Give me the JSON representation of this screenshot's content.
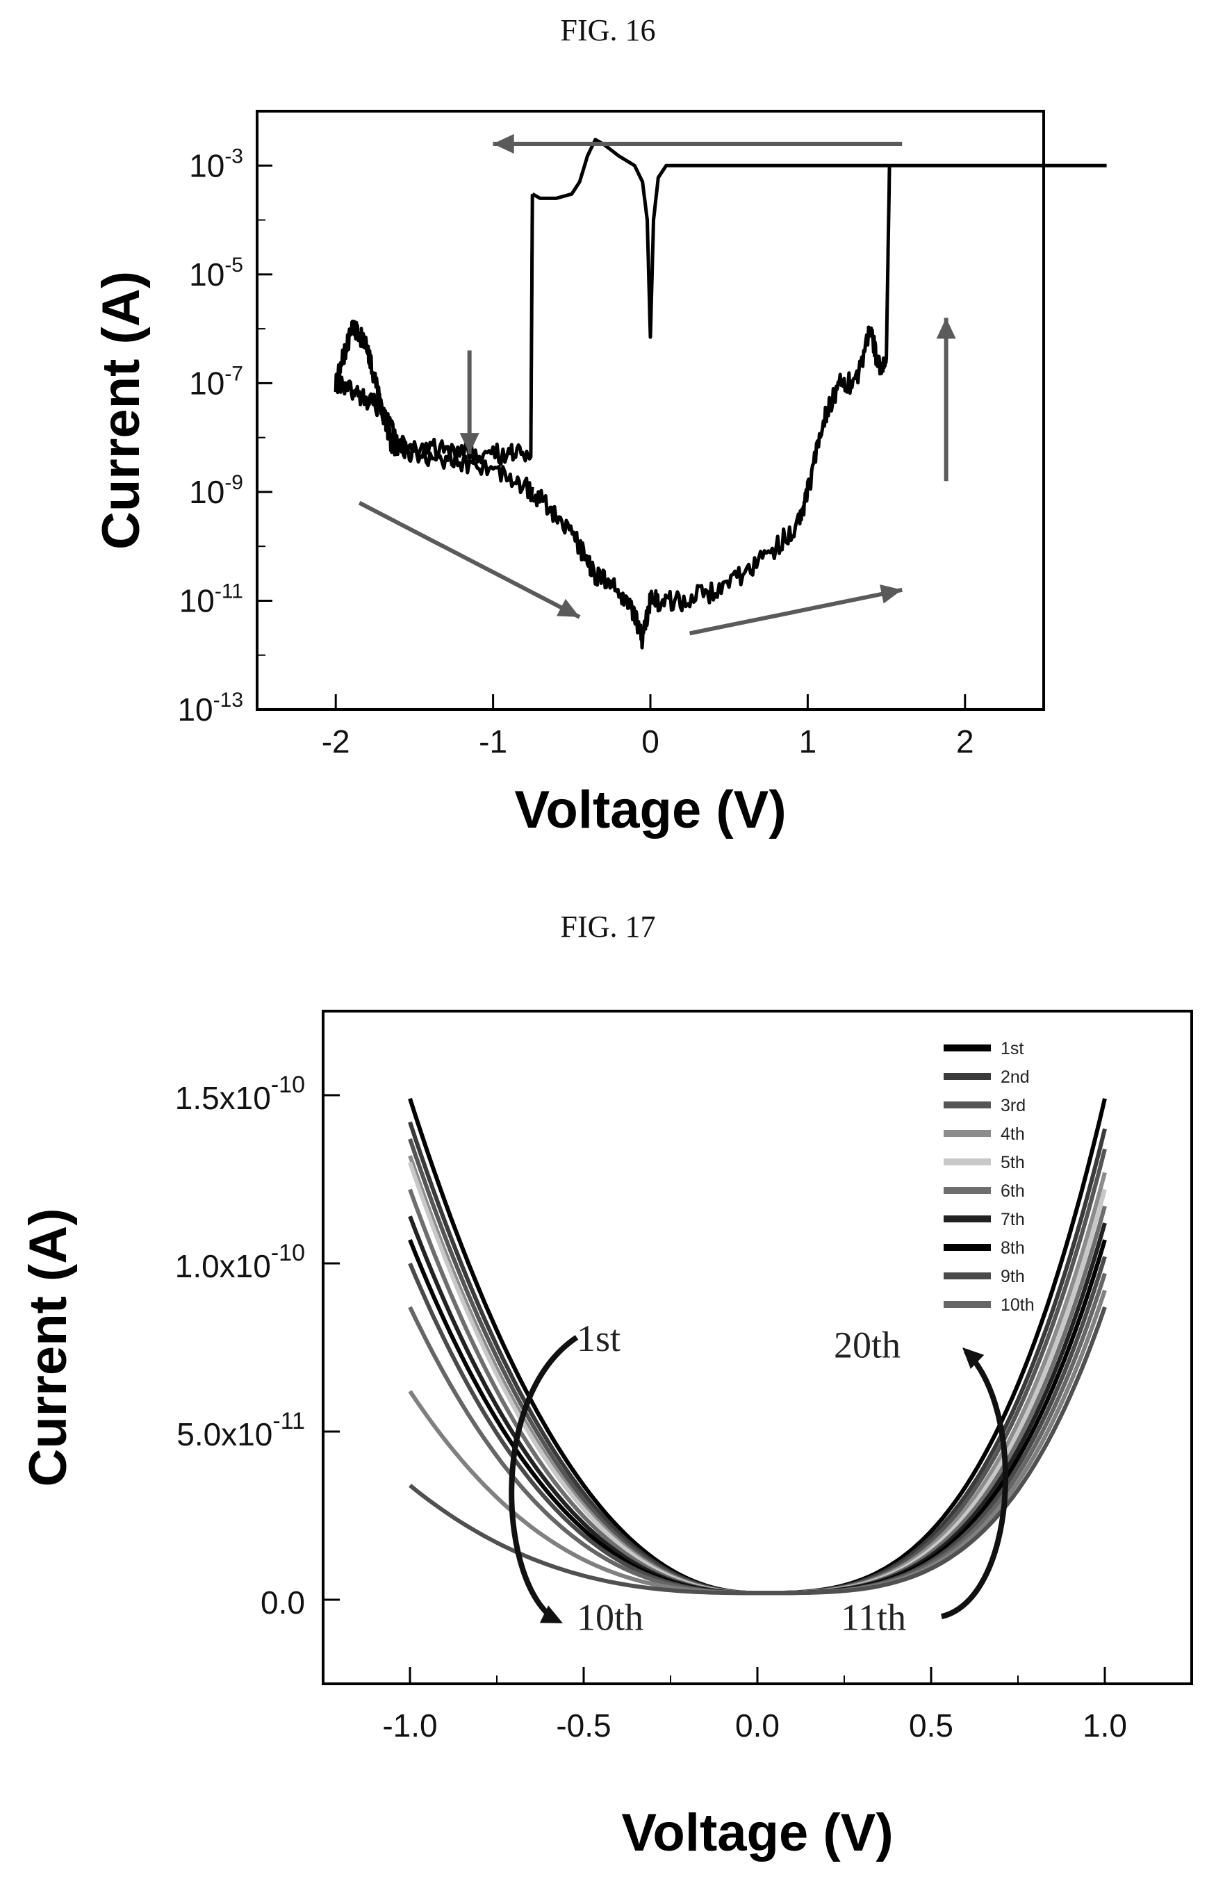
{
  "figures": {
    "fig16_title": "FIG. 16",
    "fig17_title": "FIG. 17"
  },
  "chart_data": [
    {
      "id": "fig16",
      "type": "line",
      "title": "FIG. 16",
      "xlabel": "Voltage (V)",
      "ylabel": "Current (A)",
      "xlim": [
        -2.5,
        2.5
      ],
      "ylim": [
        1e-13,
        0.01
      ],
      "yscale": "log",
      "xticks": [
        -2,
        -1,
        0,
        1,
        2
      ],
      "xtick_labels": [
        "-2",
        "-1",
        "0",
        "1",
        "2"
      ],
      "yticks": [
        -3,
        -5,
        -7,
        -9,
        -11,
        -13
      ],
      "ytick_labels": [
        "10",
        "10",
        "10",
        "10",
        "10",
        "10"
      ],
      "ytick_exponents": [
        "-3",
        "-5",
        "-7",
        "-9",
        "-11",
        "-13"
      ],
      "grid": false,
      "series": [
        {
          "color": "#000000",
          "x": [
            -0.75,
            -0.7,
            -0.6,
            -0.5,
            -0.45,
            -0.4,
            -0.35,
            -0.3,
            -0.2,
            -0.1,
            -0.05,
            -0.02,
            0.0,
            0.02,
            0.05,
            0.1,
            0.5,
            1.0,
            1.52,
            1.52,
            2.9
          ],
          "y": [
            0.0003,
            0.00025,
            0.00025,
            0.0003,
            0.0005,
            0.0015,
            0.003,
            0.0025,
            0.0015,
            0.001,
            0.0005,
            0.0001,
            7e-07,
            0.0001,
            0.0006,
            0.001,
            0.001,
            0.001,
            0.001,
            0.001,
            0.001
          ]
        },
        {
          "color": "#000000",
          "x": [
            -0.75,
            -0.9,
            -1.1,
            -1.3,
            -1.5,
            -1.6,
            -1.65,
            -1.7,
            -1.75,
            -1.8,
            -1.85,
            -1.9,
            -1.95,
            -2.0
          ],
          "y": [
            1e-09,
            2e-09,
            3e-09,
            4e-09,
            5e-09,
            6e-09,
            8e-09,
            3e-08,
            1e-07,
            5e-07,
            8e-07,
            1e-06,
            3e-07,
            1e-07
          ]
        },
        {
          "color": "#000000",
          "x": [
            -2.0,
            -1.9,
            -1.8,
            -1.7,
            -1.6,
            -1.5,
            -1.3,
            -1.1,
            -0.9,
            -0.76,
            -0.75
          ],
          "y": [
            1e-07,
            8e-08,
            5e-08,
            3e-08,
            8e-09,
            7e-09,
            6e-09,
            5e-09,
            5e-09,
            5e-09,
            0.0003
          ]
        },
        {
          "color": "#000000",
          "x": [
            -0.75,
            -0.6,
            -0.45,
            -0.35,
            -0.25,
            -0.15,
            -0.1,
            -0.05,
            0.0,
            0.05,
            0.2,
            0.4,
            0.6,
            0.8,
            0.95,
            1.0,
            1.1,
            1.2,
            1.3,
            1.4,
            1.45,
            1.5,
            1.52
          ],
          "y": [
            1e-09,
            4e-10,
            1e-10,
            3e-11,
            2e-11,
            1e-11,
            5e-12,
            2e-12,
            1e-11,
            1e-11,
            1e-11,
            1.5e-11,
            3e-11,
            1e-10,
            3e-10,
            1e-09,
            2e-08,
            1e-07,
            1e-07,
            1e-06,
            2e-07,
            3e-07,
            0.001
          ]
        }
      ],
      "arrows": [
        {
          "from": [
            1.6,
            -2.6
          ],
          "to": [
            -1.0,
            -2.6
          ]
        },
        {
          "from": [
            -0.3,
            -2.6
          ],
          "to": [
            -1.0,
            -2.6
          ]
        },
        {
          "from": [
            -1.15,
            -6.4
          ],
          "to": [
            -1.15,
            -8.3
          ]
        },
        {
          "from": [
            -1.85,
            -9.2
          ],
          "to": [
            -0.45,
            -11.3
          ]
        },
        {
          "from": [
            0.25,
            -11.6
          ],
          "to": [
            1.6,
            -10.8
          ]
        },
        {
          "from": [
            1.88,
            -8.8
          ],
          "to": [
            1.88,
            -5.8
          ]
        }
      ]
    },
    {
      "id": "fig17",
      "type": "line",
      "title": "FIG. 17",
      "xlabel": "Voltage (V)",
      "ylabel": "Current (A)",
      "xlim": [
        -1.25,
        1.25
      ],
      "ylim": [
        -2.5e-11,
        1.75e-10
      ],
      "xticks": [
        -1.0,
        -0.5,
        0.0,
        0.5,
        1.0
      ],
      "xtick_labels": [
        "-1.0",
        "-0.5",
        "0.0",
        "0.5",
        "1.0"
      ],
      "yticks": [
        0,
        5e-11,
        1e-10,
        1.5e-10
      ],
      "ytick_labels": [
        "0.0",
        "5.0x10",
        "1.0x10",
        "1.5x10"
      ],
      "ytick_exponents": [
        "",
        "-11",
        "-10",
        "-10"
      ],
      "grid": false,
      "legend": {
        "placement": "top-right",
        "entries": [
          "1st",
          "2nd",
          "3rd",
          "4th",
          "5th",
          "6th",
          "7th",
          "8th",
          "9th",
          "10th"
        ]
      },
      "series": [
        {
          "name": "1st",
          "color": "#000000",
          "left_max": 1.47e-10,
          "right_max": 1.47e-10
        },
        {
          "name": "2nd",
          "color": "#3a3a3a",
          "left_max": 1.4e-10,
          "right_max": 1.38e-10
        },
        {
          "name": "3rd",
          "color": "#555555",
          "left_max": 1.35e-10,
          "right_max": 1.32e-10
        },
        {
          "name": "4th",
          "color": "#8c8c8c",
          "left_max": 1.3e-10,
          "right_max": 1.25e-10
        },
        {
          "name": "5th",
          "color": "#c8c8c8",
          "left_max": 1.28e-10,
          "right_max": 1.2e-10
        },
        {
          "name": "6th",
          "color": "#6e6e6e",
          "left_max": 1.2e-10,
          "right_max": 1.15e-10
        },
        {
          "name": "7th",
          "color": "#222222",
          "left_max": 1.12e-10,
          "right_max": 1.1e-10
        },
        {
          "name": "8th",
          "color": "#000000",
          "left_max": 1.05e-10,
          "right_max": 1.05e-10
        },
        {
          "name": "9th",
          "color": "#4a4a4a",
          "left_max": 9.8e-11,
          "right_max": 1e-10
        },
        {
          "name": "10th",
          "color": "#666666",
          "left_max": 8.5e-11,
          "right_max": 9.5e-11
        },
        {
          "name": "",
          "color": "#808080",
          "left_max": 6e-11,
          "right_max": 9e-11
        },
        {
          "name": "",
          "color": "#505050",
          "left_max": 3.2e-11,
          "right_max": 8.5e-11
        }
      ],
      "annotations": [
        {
          "text": "1st",
          "x": -0.52,
          "y": 7.4e-11
        },
        {
          "text": "10th",
          "x": -0.52,
          "y": -9e-12
        },
        {
          "text": "20th",
          "x": 0.22,
          "y": 7.2e-11
        },
        {
          "text": "11th",
          "x": 0.24,
          "y": -9e-12
        }
      ]
    }
  ]
}
